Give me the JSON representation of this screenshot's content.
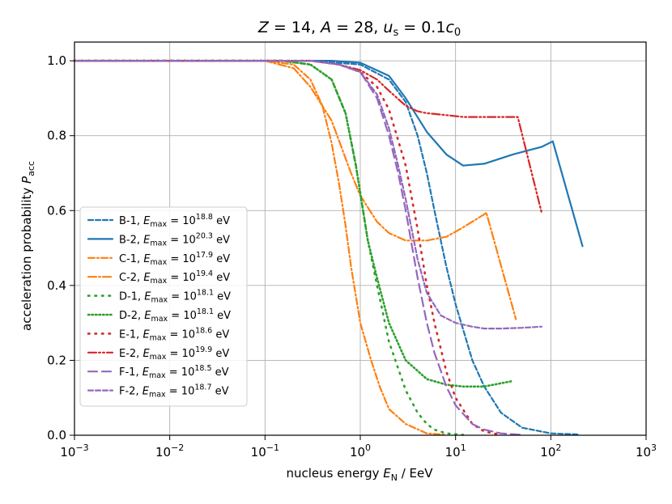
{
  "chart_data": {
    "type": "line",
    "title": "Z = 14, A = 28, u_s = 0.1c_0",
    "title_parts": {
      "z": "Z",
      "z_eq": " = 14, ",
      "a": "A",
      "a_eq": " = 28, ",
      "u": "u",
      "u_sub": "s",
      "u_eq": " = 0.1",
      "c": "c",
      "c_sub": "0"
    },
    "xlabel": "nucleus energy E_N / EeV",
    "xlabel_parts": {
      "pre": "nucleus energy ",
      "e": "E",
      "sub": "N",
      "post": " / EeV"
    },
    "ylabel": "acceleration probability P_acc",
    "ylabel_parts": {
      "pre": "acceleration probability ",
      "p": "P",
      "sub": "acc"
    },
    "x_scale": "log",
    "xlim": [
      0.001,
      1000
    ],
    "ylim": [
      0.0,
      1.05
    ],
    "x_ticks": [
      {
        "value": 0.001,
        "base": "10",
        "exp": "−3"
      },
      {
        "value": 0.01,
        "base": "10",
        "exp": "−2"
      },
      {
        "value": 0.1,
        "base": "10",
        "exp": "−1"
      },
      {
        "value": 1,
        "base": "10",
        "exp": "0"
      },
      {
        "value": 10,
        "base": "10",
        "exp": "1"
      },
      {
        "value": 100,
        "base": "10",
        "exp": "2"
      },
      {
        "value": 1000,
        "base": "10",
        "exp": "3"
      }
    ],
    "y_ticks": [
      {
        "value": 0.0,
        "label": "0.0"
      },
      {
        "value": 0.2,
        "label": "0.2"
      },
      {
        "value": 0.4,
        "label": "0.4"
      },
      {
        "value": 0.6,
        "label": "0.6"
      },
      {
        "value": 0.8,
        "label": "0.8"
      },
      {
        "value": 1.0,
        "label": "1.0"
      }
    ],
    "grid": true,
    "legend_position": "lower-left",
    "legend_e": "E",
    "legend_sub": "max",
    "legend_unit": " eV",
    "series": [
      {
        "name": "B-1",
        "exp": "18.8",
        "color": "#1f77b4",
        "dash": "6 3",
        "width": 2.2,
        "x": [
          0.001,
          0.3,
          1,
          2,
          3,
          4,
          5,
          6,
          8,
          10,
          15,
          20,
          30,
          50,
          100,
          200
        ],
        "y": [
          1.0,
          1.0,
          0.99,
          0.95,
          0.89,
          0.8,
          0.7,
          0.6,
          0.45,
          0.35,
          0.2,
          0.13,
          0.06,
          0.02,
          0.005,
          0.002
        ]
      },
      {
        "name": "B-2",
        "exp": "20.3",
        "color": "#1f77b4",
        "dash": "",
        "width": 2.2,
        "x": [
          0.001,
          0.5,
          1,
          2,
          3,
          5,
          8,
          12,
          20,
          40,
          80,
          105,
          215
        ],
        "y": [
          1.0,
          1.0,
          0.995,
          0.96,
          0.9,
          0.81,
          0.75,
          0.72,
          0.725,
          0.75,
          0.77,
          0.785,
          0.505
        ]
      },
      {
        "name": "C-1",
        "exp": "17.9",
        "color": "#ff7f0e",
        "dash": "8 3 2 3",
        "width": 2.2,
        "x": [
          0.001,
          0.1,
          0.2,
          0.3,
          0.4,
          0.5,
          0.6,
          0.7,
          0.8,
          1.0,
          1.3,
          1.6,
          2.0,
          3.0,
          5.0,
          8.0
        ],
        "y": [
          1.0,
          1.0,
          0.99,
          0.95,
          0.88,
          0.78,
          0.67,
          0.56,
          0.45,
          0.3,
          0.2,
          0.13,
          0.07,
          0.03,
          0.005,
          0.001
        ]
      },
      {
        "name": "C-2",
        "exp": "19.4",
        "color": "#ff7f0e",
        "dash": "10 3 2 3",
        "width": 2.2,
        "x": [
          0.001,
          0.1,
          0.2,
          0.3,
          0.5,
          0.8,
          1.0,
          1.5,
          2.0,
          3.0,
          5.0,
          8.0,
          12,
          20,
          21,
          43
        ],
        "y": [
          1.0,
          1.0,
          0.98,
          0.93,
          0.84,
          0.7,
          0.64,
          0.57,
          0.54,
          0.52,
          0.52,
          0.53,
          0.555,
          0.59,
          0.595,
          0.31
        ]
      },
      {
        "name": "D-1",
        "exp": "18.1",
        "color": "#2ca02c",
        "dash": "1.5 7",
        "width": 2.6,
        "x": [
          0.001,
          0.15,
          0.3,
          0.5,
          0.7,
          0.9,
          1.2,
          1.5,
          2.0,
          3.0,
          4.0,
          5.0,
          6.0,
          8.0,
          12
        ],
        "y": [
          1.0,
          1.0,
          0.99,
          0.95,
          0.86,
          0.72,
          0.52,
          0.4,
          0.25,
          0.12,
          0.06,
          0.03,
          0.015,
          0.005,
          0.001
        ]
      },
      {
        "name": "D-2",
        "exp": "18.1",
        "color": "#2ca02c",
        "dash": "1.5 3",
        "width": 2.6,
        "x": [
          0.001,
          0.15,
          0.3,
          0.5,
          0.7,
          0.9,
          1.2,
          1.5,
          2.0,
          3.0,
          5.0,
          8.0,
          12,
          20,
          40
        ],
        "y": [
          1.0,
          1.0,
          0.99,
          0.95,
          0.86,
          0.72,
          0.52,
          0.42,
          0.3,
          0.2,
          0.15,
          0.135,
          0.13,
          0.13,
          0.145
        ]
      },
      {
        "name": "E-1",
        "exp": "18.6",
        "color": "#d62728",
        "dash": "1.5 7",
        "width": 2.6,
        "x": [
          0.001,
          0.3,
          0.6,
          1.0,
          1.5,
          2.0,
          3.0,
          4.0,
          5.0,
          6.0,
          8.0,
          10,
          15,
          20,
          30
        ],
        "y": [
          1.0,
          1.0,
          0.99,
          0.97,
          0.93,
          0.87,
          0.72,
          0.55,
          0.4,
          0.3,
          0.17,
          0.1,
          0.03,
          0.01,
          0.001
        ]
      },
      {
        "name": "E-2",
        "exp": "19.9",
        "color": "#d62728",
        "dash": "10 3 2 3 2 3",
        "width": 2.2,
        "x": [
          0.001,
          0.3,
          0.6,
          1.0,
          1.5,
          2.0,
          3.0,
          4.0,
          5.0,
          8.0,
          12,
          20,
          40,
          45,
          80
        ],
        "y": [
          1.0,
          1.0,
          0.99,
          0.975,
          0.95,
          0.92,
          0.88,
          0.865,
          0.86,
          0.855,
          0.85,
          0.85,
          0.85,
          0.85,
          0.595
        ]
      },
      {
        "name": "F-1",
        "exp": "18.5",
        "color": "#9467bd",
        "dash": "11 6",
        "width": 2.2,
        "x": [
          0.001,
          0.3,
          0.6,
          1.0,
          1.5,
          2.0,
          2.5,
          3.0,
          4.0,
          5.0,
          6.0,
          8.0,
          10,
          15,
          20,
          30,
          50
        ],
        "y": [
          1.0,
          1.0,
          0.99,
          0.97,
          0.9,
          0.8,
          0.7,
          0.6,
          0.42,
          0.3,
          0.22,
          0.13,
          0.08,
          0.03,
          0.015,
          0.005,
          0.001
        ]
      },
      {
        "name": "F-2",
        "exp": "18.7",
        "color": "#9467bd",
        "dash": "6 3",
        "width": 2.2,
        "x": [
          0.001,
          0.3,
          0.6,
          1.0,
          1.5,
          2.0,
          2.5,
          3.0,
          4.0,
          5.0,
          7.0,
          10,
          15,
          20,
          30,
          50,
          80
        ],
        "y": [
          1.0,
          1.0,
          0.99,
          0.97,
          0.91,
          0.82,
          0.72,
          0.63,
          0.47,
          0.38,
          0.32,
          0.3,
          0.29,
          0.285,
          0.285,
          0.287,
          0.29
        ]
      }
    ]
  }
}
